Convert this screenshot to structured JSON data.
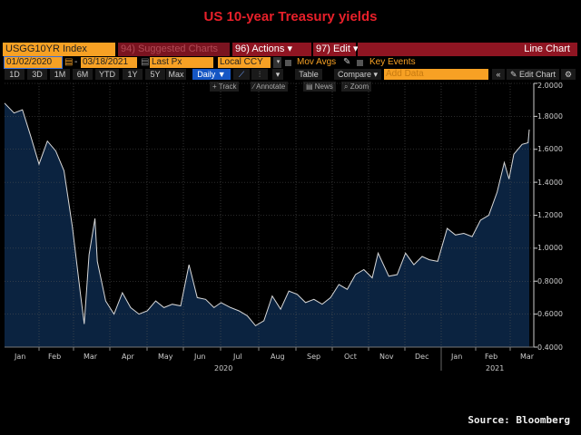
{
  "title": "US 10-year Treasury yields",
  "toolbar": {
    "ticker": "USGG10YR Index",
    "suggested": "94) Suggested Charts",
    "actions": "96) Actions ▾",
    "edit": "97) Edit ▾",
    "chart_type": "Line Chart",
    "start_date": "01/02/2020",
    "dash": "-",
    "end_date": "03/18/2021",
    "field": "Last Px",
    "currency": "Local CCY",
    "mov_avgs": "Mov Avgs",
    "key_events": "Key Events",
    "periods": [
      "1D",
      "3D",
      "1M",
      "6M",
      "YTD",
      "1Y",
      "5Y",
      "Max"
    ],
    "frequency": "Daily ▼",
    "table": "Table",
    "compare": "Compare ▾",
    "add_data_placeholder": "Add Data",
    "collapse": "«",
    "edit_chart": "Edit Chart",
    "tools": [
      "Track",
      "Annotate",
      "News",
      "Zoom"
    ]
  },
  "source": "Source: Bloomberg",
  "colors": {
    "line": "#d8d8d8",
    "fill": "#0b2340",
    "title": "#e8202a",
    "accent": "#f7a124"
  },
  "chart_data": {
    "type": "area",
    "title": "US 10-year Treasury yields",
    "ylabel": "",
    "xlabel": "",
    "ylim": [
      0.4,
      2.0
    ],
    "yticks": [
      "2.0000",
      "1.8000",
      "1.6000",
      "1.4000",
      "1.2000",
      "1.0000",
      "0.8000",
      "0.6000",
      "0.4000"
    ],
    "xticks": [
      "Jan",
      "Feb",
      "Mar",
      "Apr",
      "May",
      "Jun",
      "Jul",
      "Aug",
      "Sep",
      "Oct",
      "Nov",
      "Dec",
      "Jan",
      "Feb",
      "Mar"
    ],
    "years": [
      "2020",
      "2021"
    ],
    "grid": true,
    "x": [
      "2020-01-02",
      "2020-01-10",
      "2020-01-17",
      "2020-01-24",
      "2020-01-31",
      "2020-02-07",
      "2020-02-14",
      "2020-02-21",
      "2020-02-28",
      "2020-03-06",
      "2020-03-09",
      "2020-03-13",
      "2020-03-18",
      "2020-03-20",
      "2020-03-27",
      "2020-04-03",
      "2020-04-10",
      "2020-04-17",
      "2020-04-24",
      "2020-05-01",
      "2020-05-08",
      "2020-05-15",
      "2020-05-22",
      "2020-05-29",
      "2020-06-05",
      "2020-06-12",
      "2020-06-19",
      "2020-06-26",
      "2020-07-02",
      "2020-07-10",
      "2020-07-17",
      "2020-07-24",
      "2020-07-31",
      "2020-08-07",
      "2020-08-14",
      "2020-08-21",
      "2020-08-28",
      "2020-09-04",
      "2020-09-11",
      "2020-09-18",
      "2020-09-25",
      "2020-10-02",
      "2020-10-09",
      "2020-10-16",
      "2020-10-23",
      "2020-10-30",
      "2020-11-06",
      "2020-11-11",
      "2020-11-20",
      "2020-11-27",
      "2020-12-04",
      "2020-12-11",
      "2020-12-18",
      "2020-12-24",
      "2020-12-31",
      "2021-01-08",
      "2021-01-15",
      "2021-01-22",
      "2021-01-29",
      "2021-02-05",
      "2021-02-12",
      "2021-02-19",
      "2021-02-25",
      "2021-03-01",
      "2021-03-05",
      "2021-03-12",
      "2021-03-17",
      "2021-03-18"
    ],
    "values": [
      1.88,
      1.82,
      1.84,
      1.68,
      1.51,
      1.65,
      1.59,
      1.47,
      1.13,
      0.71,
      0.54,
      0.96,
      1.18,
      0.92,
      0.68,
      0.6,
      0.73,
      0.64,
      0.6,
      0.62,
      0.68,
      0.64,
      0.66,
      0.65,
      0.9,
      0.7,
      0.69,
      0.64,
      0.67,
      0.64,
      0.62,
      0.59,
      0.53,
      0.56,
      0.71,
      0.63,
      0.74,
      0.72,
      0.67,
      0.69,
      0.66,
      0.7,
      0.78,
      0.75,
      0.84,
      0.87,
      0.82,
      0.97,
      0.83,
      0.84,
      0.97,
      0.9,
      0.95,
      0.93,
      0.92,
      1.12,
      1.08,
      1.09,
      1.07,
      1.17,
      1.2,
      1.34,
      1.52,
      1.42,
      1.57,
      1.63,
      1.64,
      1.72
    ]
  }
}
